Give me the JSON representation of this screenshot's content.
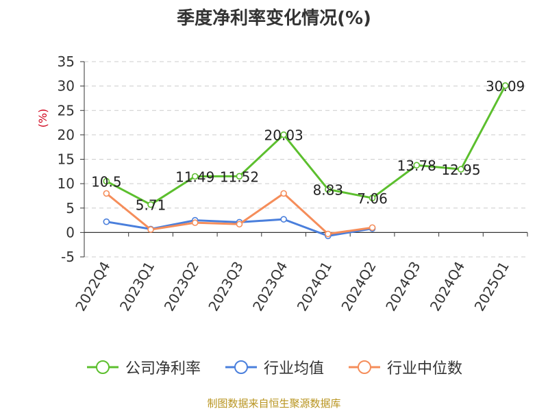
{
  "chart_data": {
    "type": "line",
    "title": "季度净利率变化情况(%)",
    "ylabel": "(%)",
    "categories": [
      "2022Q4",
      "2023Q1",
      "2023Q2",
      "2023Q3",
      "2023Q4",
      "2024Q1",
      "2024Q2",
      "2024Q3",
      "2024Q4",
      "2025Q1"
    ],
    "ylim": [
      -5,
      35
    ],
    "yticks": [
      -5,
      0,
      5,
      10,
      15,
      20,
      25,
      30,
      35
    ],
    "grid": true,
    "legend_position": "bottom",
    "series": [
      {
        "name": "公司净利率",
        "color": "#5cbf2e",
        "values": [
          10.5,
          5.71,
          11.49,
          11.52,
          20.03,
          8.83,
          7.06,
          13.78,
          12.95,
          30.09
        ],
        "labels": [
          "10.5",
          "5.71",
          "11.49",
          "11.52",
          "20.03",
          "8.83",
          "7.06",
          "13.78",
          "12.95",
          "30.09"
        ]
      },
      {
        "name": "行业均值",
        "color": "#4a7fdc",
        "values": [
          2.2,
          0.7,
          2.5,
          2.1,
          2.7,
          -0.7,
          0.8,
          null,
          null,
          null
        ]
      },
      {
        "name": "行业中位数",
        "color": "#f58d5a",
        "values": [
          8.0,
          0.6,
          2.0,
          1.7,
          8.0,
          -0.3,
          1.0,
          null,
          null,
          null
        ]
      }
    ]
  },
  "source": "制图数据来自恒生聚源数据库"
}
